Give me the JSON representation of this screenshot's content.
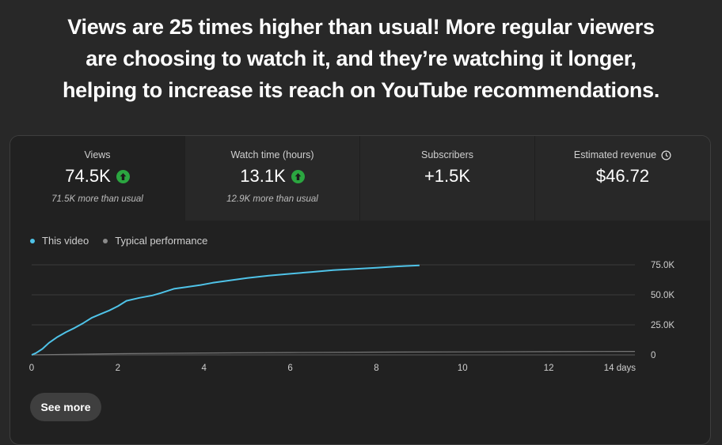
{
  "headline": {
    "line1": "Views are 25 times higher than usual! More regular viewers",
    "line2": "are choosing to watch it, and they’re watching it longer,",
    "line3": "helping to increase its reach on YouTube recommendations."
  },
  "metrics": [
    {
      "title": "Views",
      "value": "74.5K",
      "trend_icon": "arrow-up-icon",
      "subtitle": "71.5K more than usual"
    },
    {
      "title": "Watch time (hours)",
      "value": "13.1K",
      "trend_icon": "arrow-up-icon",
      "subtitle": "12.9K more than usual"
    },
    {
      "title": "Subscribers",
      "value": "+1.5K"
    },
    {
      "title": "Estimated revenue",
      "value": "$46.72",
      "title_icon": "clock-icon"
    }
  ],
  "legend": {
    "this_video": "This video",
    "typical": "Typical performance"
  },
  "colors": {
    "this_video": "#3ea6ff",
    "typical": "#aaaaaa",
    "up_badge": "#2ba640"
  },
  "see_more_label": "See more",
  "chart_data": {
    "type": "line",
    "xlim": [
      0,
      14
    ],
    "ylim": [
      0,
      75000
    ],
    "x_ticks": [
      0,
      2,
      4,
      6,
      8,
      10,
      12,
      14
    ],
    "x_tick_labels": [
      "0",
      "2",
      "4",
      "6",
      "8",
      "10",
      "12",
      "14 days"
    ],
    "y_ticks": [
      0,
      25000,
      50000,
      75000
    ],
    "y_tick_labels": [
      "0",
      "25.0K",
      "50.0K",
      "75.0K"
    ],
    "grid": true,
    "legend_position": "top-left",
    "series": [
      {
        "name": "This video",
        "color": "#4fc3e8",
        "x": [
          0,
          0.1,
          0.25,
          0.4,
          0.6,
          0.8,
          1.0,
          1.2,
          1.4,
          1.6,
          1.8,
          2.0,
          2.2,
          2.5,
          2.8,
          3.0,
          3.3,
          3.6,
          3.9,
          4.2,
          4.6,
          5.0,
          5.5,
          6.0,
          6.5,
          7.0,
          7.5,
          8.0,
          8.5,
          9.0
        ],
        "values": [
          0,
          1500,
          5000,
          10000,
          15000,
          19000,
          22500,
          26500,
          31000,
          34000,
          37000,
          40500,
          45000,
          47500,
          49500,
          51500,
          55000,
          56500,
          58000,
          60000,
          62000,
          64000,
          66000,
          67500,
          69000,
          70500,
          71500,
          72500,
          73700,
          74500
        ]
      },
      {
        "name": "Typical performance",
        "color": "#777777",
        "x": [
          0,
          1,
          2,
          4,
          6,
          8,
          10,
          12,
          14
        ],
        "values": [
          0,
          500,
          1000,
          1600,
          2000,
          2300,
          2500,
          2700,
          2900
        ]
      }
    ]
  }
}
